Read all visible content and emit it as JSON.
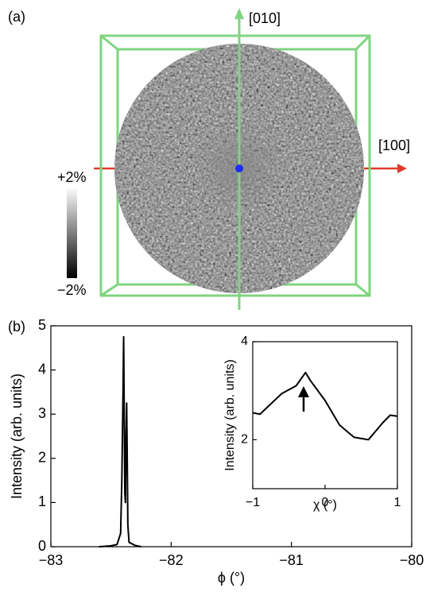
{
  "panel_a": {
    "panel_label": "(a)",
    "axis_up_label": "[010]",
    "axis_right_label": "[100]",
    "colorbar_max_label": "+2%",
    "colorbar_min_label": "−2%"
  },
  "chart_data": [
    {
      "type": "line",
      "panel_label": "(b)",
      "x_label": "ϕ (°)",
      "y_label": "Intensity (arb. units)",
      "xlim": [
        -83,
        -80
      ],
      "ylim": [
        0,
        5
      ],
      "xticks": [
        {
          "value": -83,
          "label": "−83"
        },
        {
          "value": -82,
          "label": "−82"
        },
        {
          "value": -81,
          "label": "−81"
        },
        {
          "value": -80,
          "label": "−80"
        }
      ],
      "yticks": [
        0,
        1,
        2,
        3,
        4,
        5
      ],
      "series": [
        {
          "color": "#000000",
          "x": [
            -82.6,
            -82.5,
            -82.45,
            -82.42,
            -82.41,
            -82.4,
            -82.395,
            -82.39,
            -82.385,
            -82.38,
            -82.375,
            -82.37,
            -82.365,
            -82.36,
            -82.35,
            -82.3,
            -82.25
          ],
          "values": [
            0.0,
            0.02,
            0.05,
            0.3,
            1.5,
            3.5,
            4.75,
            3.0,
            1.2,
            1.0,
            2.5,
            3.25,
            2.0,
            0.5,
            0.1,
            0.03,
            0.0
          ]
        }
      ]
    },
    {
      "type": "line",
      "x_label": "χ (°)",
      "y_label": "Intensity (arb. units)",
      "xlim": [
        -1,
        1
      ],
      "ylim": [
        1,
        4
      ],
      "xticks": [
        {
          "value": -1,
          "label": "−1"
        },
        0,
        1
      ],
      "yticks": [
        2,
        4
      ],
      "series": [
        {
          "color": "#000000",
          "x": [
            -1,
            -0.9,
            -0.6,
            -0.4,
            -0.27,
            -0.2,
            0,
            0.2,
            0.4,
            0.6,
            0.8,
            0.9,
            1
          ],
          "values": [
            2.55,
            2.52,
            2.94,
            3.1,
            3.37,
            3.2,
            2.8,
            2.3,
            2.05,
            2.0,
            2.35,
            2.5,
            2.48
          ]
        }
      ]
    }
  ]
}
